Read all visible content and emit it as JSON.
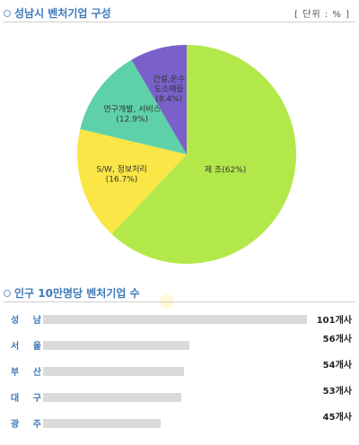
{
  "section1": {
    "title": "성남시 벤처기업 구성",
    "unit": "[ 단위 : % ]"
  },
  "chart_data": [
    {
      "type": "pie",
      "title": "성남시 벤처기업 구성",
      "unit": "%",
      "slices": [
        {
          "label_lines": [
            "제 조(62%)"
          ],
          "name": "제 조",
          "value": 62,
          "color": "#b3e84a"
        },
        {
          "label_lines": [
            "S/W, 정보처리",
            "(16.7%)"
          ],
          "name": "S/W, 정보처리",
          "value": 16.7,
          "color": "#fae646"
        },
        {
          "label_lines": [
            "연구개발, 서비스",
            "(12.9%)"
          ],
          "name": "연구개발, 서비스",
          "value": 12.9,
          "color": "#5ed1a8"
        },
        {
          "label_lines": [
            "건설,운수",
            "도소매등",
            "(8.4%)"
          ],
          "name": "건설,운수 도소매등",
          "value": 8.4,
          "color": "#7a61c9"
        }
      ]
    },
    {
      "type": "bar",
      "orientation": "horizontal",
      "title": "인구 10만명당 벤처기업 수",
      "categories": [
        "성 남",
        "서 울",
        "부 산",
        "대 구",
        "광 주"
      ],
      "values": [
        101,
        56,
        54,
        53,
        45
      ],
      "value_labels": [
        "101개사",
        "56개사",
        "54개사",
        "53개사",
        "45개사"
      ],
      "unit": "개사",
      "color": "#dadada"
    }
  ],
  "section2": {
    "title": "인구 10만명당 벤처기업 수"
  }
}
